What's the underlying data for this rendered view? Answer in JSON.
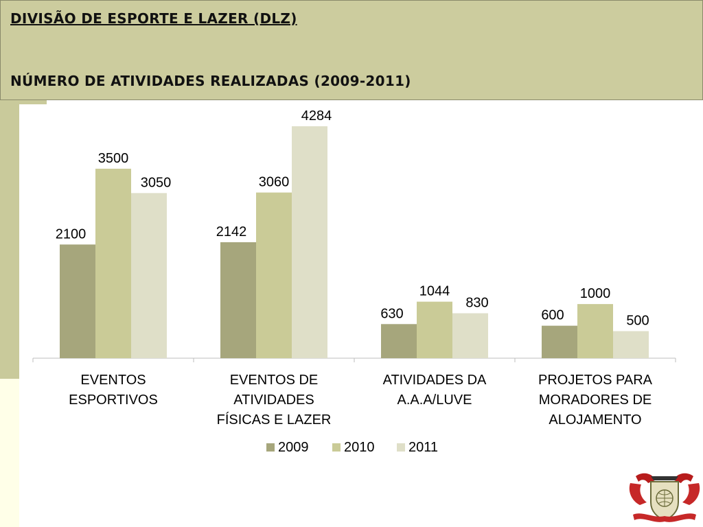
{
  "header": {
    "title": "DIVISÃO DE ESPORTE E LAZER (DLZ)",
    "subtitle": "NÚMERO DE ATIVIDADES REALIZADAS (2009-2011)"
  },
  "colors": {
    "header_bg": "#cccc9e",
    "series_2009": "#a6a67c",
    "series_2010": "#cacb97",
    "series_2011": "#dfdfc8"
  },
  "logo": {
    "icon": "institution-seal-icon"
  },
  "chart_data": {
    "type": "bar",
    "categories": [
      [
        "EVENTOS",
        "ESPORTIVOS"
      ],
      [
        "EVENTOS DE",
        "ATIVIDADES",
        "FÍSICAS E LAZER"
      ],
      [
        "ATIVIDADES DA",
        "A.A.A/LUVE"
      ],
      [
        "PROJETOS PARA",
        "MORADORES DE",
        "ALOJAMENTO"
      ]
    ],
    "series": [
      {
        "name": "2009",
        "values": [
          2100,
          2142,
          630,
          600
        ],
        "color": "#a6a67c"
      },
      {
        "name": "2010",
        "values": [
          3500,
          3060,
          1044,
          1000
        ],
        "color": "#cacb97"
      },
      {
        "name": "2011",
        "values": [
          3050,
          4284,
          830,
          500
        ],
        "color": "#dfdfc8"
      }
    ],
    "ylim": [
      0,
      4284
    ],
    "data_labels": true,
    "grid": false,
    "legend": "bottom"
  }
}
